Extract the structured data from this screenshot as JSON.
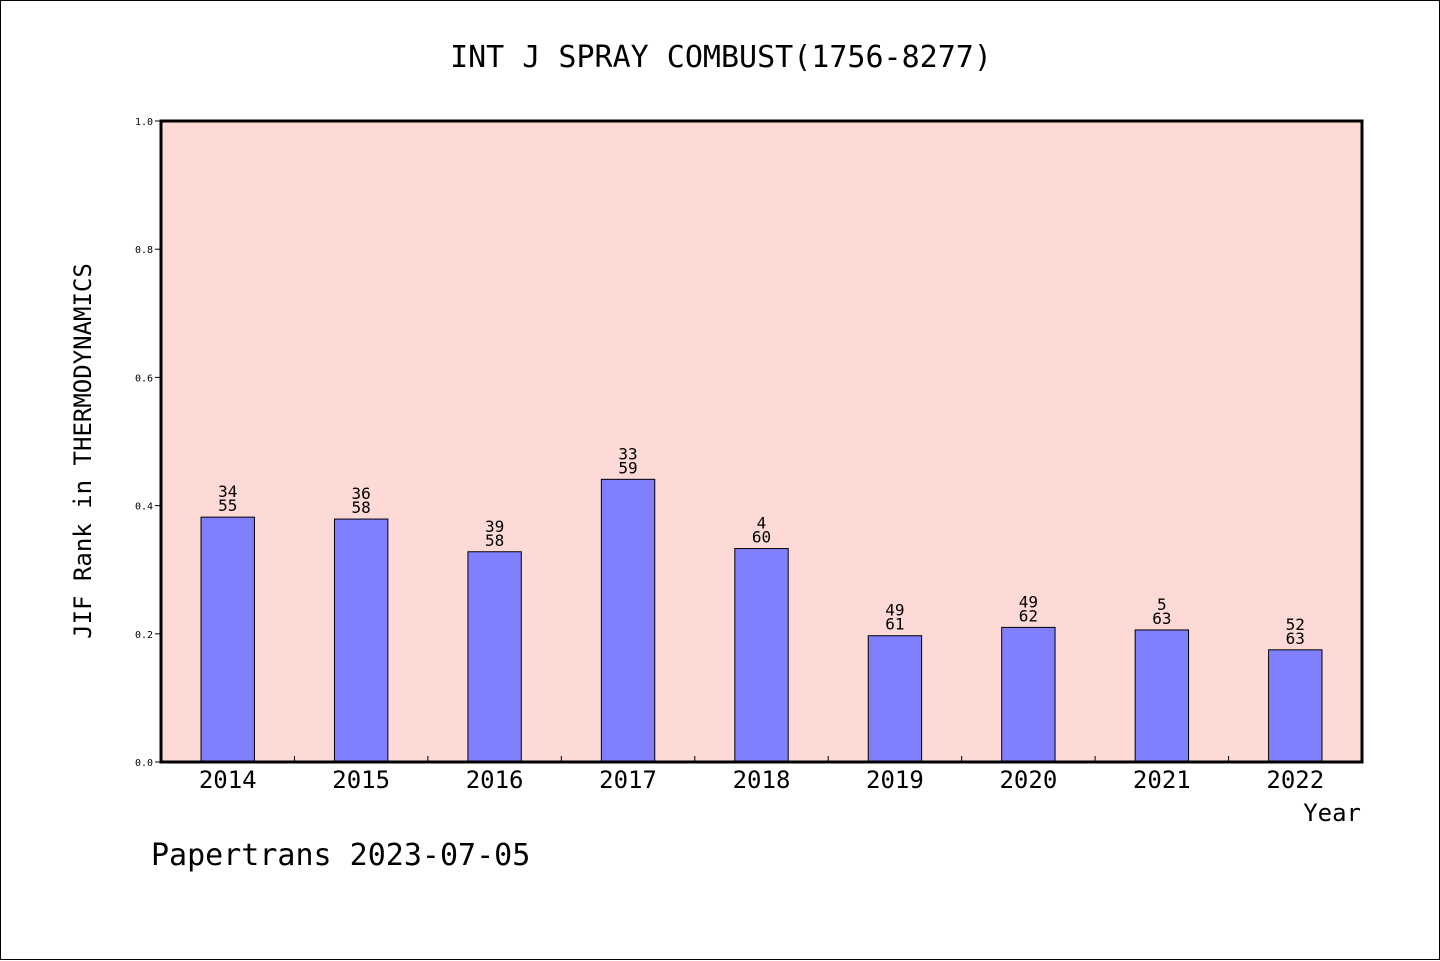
{
  "footer_text": "Papertrans 2023-07-05",
  "colors": {
    "plot_background": "#fddad6",
    "bar_fill": "#8080ff",
    "bar_stroke": "#000000"
  },
  "chart_data": {
    "type": "bar",
    "title": "INT J SPRAY COMBUST(1756-8277)",
    "xlabel": "Year",
    "ylabel": "JIF Rank in THERMODYNAMICS",
    "ylim": [
      0,
      1.0
    ],
    "yticks": [
      "0.0",
      "0.2",
      "0.4",
      "0.6",
      "0.8",
      "1.0"
    ],
    "grid": false,
    "categories": [
      "2014",
      "2015",
      "2016",
      "2017",
      "2018",
      "2019",
      "2020",
      "2021",
      "2022"
    ],
    "values": [
      0.382,
      0.379,
      0.328,
      0.441,
      0.333,
      0.197,
      0.21,
      0.206,
      0.175
    ],
    "labels_top": [
      "34",
      "36",
      "39",
      "33",
      "4",
      "49",
      "49",
      "5",
      "52"
    ],
    "labels_bottom": [
      "55",
      "58",
      "58",
      "59",
      "60",
      "61",
      "62",
      "63",
      "63"
    ]
  }
}
